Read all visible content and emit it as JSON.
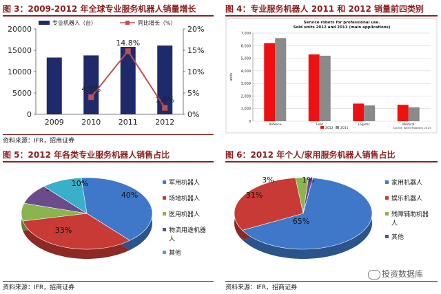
{
  "panels": {
    "p3": {
      "title": "图 3：2009-2012 年全球专业服务机器人销量增长",
      "source": "资料来源：IFR，招商证券"
    },
    "p4": {
      "title": "图 4：专业服务机器人 2011 和 2012 销量前四类别"
    },
    "p5": {
      "title": "图 5：2012 年各类专业服务机器人销售占比",
      "source": "资料来源：IFR，招商证券"
    },
    "p6": {
      "title": "图 6：2012 年个人/家用服务机器人销售占比",
      "source": "资料来源：IFR，招商证券"
    }
  },
  "watermark": "投资数据库",
  "colors": {
    "accent": "#8b1e1e",
    "navy": "#1f2a6b",
    "line_red": "#c0392b"
  },
  "chart_data": [
    {
      "type": "bar",
      "id": "fig3",
      "categories": [
        "2009",
        "2010",
        "2011",
        "2012"
      ],
      "series": [
        {
          "name": "专业机器人（台）",
          "values": [
            13300,
            13800,
            15800,
            16100
          ],
          "axis": "left",
          "color": "#1f2a6b"
        },
        {
          "name": "同比增长（%）",
          "values": [
            null,
            4.0,
            14.8,
            1.5
          ],
          "axis": "right",
          "kind": "line",
          "color": "#c0504d"
        }
      ],
      "data_labels": [
        "4.0%",
        "14.8%",
        "1.5%"
      ],
      "ylim_left": [
        0,
        20000
      ],
      "yticks_left": [
        "0",
        "5000",
        "10000",
        "15000",
        "20000"
      ],
      "ylim_right": [
        0,
        20
      ],
      "yticks_right": [
        "0%",
        "5%",
        "10%",
        "15%",
        "20%"
      ],
      "legend": "top"
    },
    {
      "type": "bar",
      "id": "fig4",
      "title": "Service robots for professional use.",
      "subtitle": "Sold units 2012 and 2011 (main applications)",
      "categories": [
        "Defence",
        "Field",
        "Logistic",
        "Medical"
      ],
      "series": [
        {
          "name": "2012",
          "values": [
            6200,
            5300,
            1400,
            1300
          ],
          "color": "#ee1111"
        },
        {
          "name": "2011",
          "values": [
            6600,
            5200,
            1250,
            1100
          ],
          "color": "#8a8a8a"
        }
      ],
      "ylabel": "units",
      "ylim": [
        0,
        7000
      ],
      "yticks": [
        "0",
        "1,000",
        "2,000",
        "3,000",
        "4,000",
        "5,000",
        "6,000",
        "7,000"
      ],
      "note": "Source: World Robotics 2013",
      "legend": "bottom"
    },
    {
      "type": "pie",
      "id": "fig5",
      "labels": [
        "军用机器人",
        "场地机器人",
        "医用机器人",
        "物流用途机器人",
        "其他"
      ],
      "values": [
        40,
        33,
        8,
        9,
        10
      ],
      "value_labels": [
        "40%",
        "33%",
        "8%",
        "9%",
        "10%"
      ],
      "colors": [
        "#3f78c8",
        "#c83a35",
        "#8ab44e",
        "#6b4b8c",
        "#39b0c9"
      ],
      "legend": "right"
    },
    {
      "type": "pie",
      "id": "fig6",
      "labels": [
        "家用机器人",
        "娱乐机器人",
        "残障辅助机器人",
        "其他"
      ],
      "values": [
        65,
        31,
        3,
        1
      ],
      "value_labels": [
        "65%",
        "31%",
        "3%",
        "1%"
      ],
      "colors": [
        "#3f78c8",
        "#c83a35",
        "#8ab44e",
        "#6b4b8c"
      ],
      "legend": "right"
    }
  ]
}
